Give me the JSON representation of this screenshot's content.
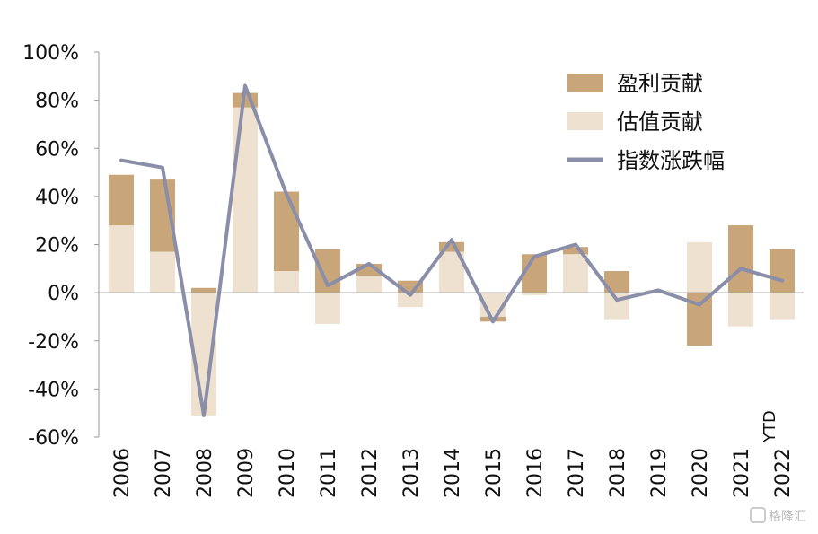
{
  "chart_data": {
    "type": "bar",
    "categories": [
      "2006",
      "2007",
      "2008",
      "2009",
      "2010",
      "2011",
      "2012",
      "2013",
      "2014",
      "2015",
      "2016",
      "2017",
      "2018",
      "2019",
      "2020",
      "2021",
      "2022"
    ],
    "ylim": [
      -60,
      100
    ],
    "yticks": [
      -60,
      -40,
      -20,
      0,
      20,
      40,
      60,
      80,
      100
    ],
    "ytick_labels": [
      "-60%",
      "-40%",
      "-20%",
      "0%",
      "20%",
      "40%",
      "60%",
      "80%",
      "100%"
    ],
    "annotation": "YTD",
    "series": [
      {
        "name": "盈利贡献",
        "type": "bar",
        "color": "#c9a679",
        "values": [
          21,
          30,
          2,
          6,
          33,
          18,
          5,
          5,
          4,
          -2,
          16,
          3,
          9,
          0,
          -22,
          28,
          18
        ]
      },
      {
        "name": "估值贡献",
        "type": "bar",
        "color": "#eee1cf",
        "values": [
          28,
          17,
          -51,
          77,
          9,
          -13,
          7,
          -6,
          17,
          -10,
          -1,
          16,
          -11,
          1,
          21,
          -14,
          -11
        ]
      },
      {
        "name": "指数涨跌幅",
        "type": "line",
        "color": "#8b8ea8",
        "values": [
          55,
          52,
          -51,
          86,
          41,
          3,
          12,
          -1,
          22,
          -12,
          15,
          20,
          -3,
          1,
          -5,
          10,
          5
        ]
      }
    ]
  },
  "watermark": "格隆汇"
}
